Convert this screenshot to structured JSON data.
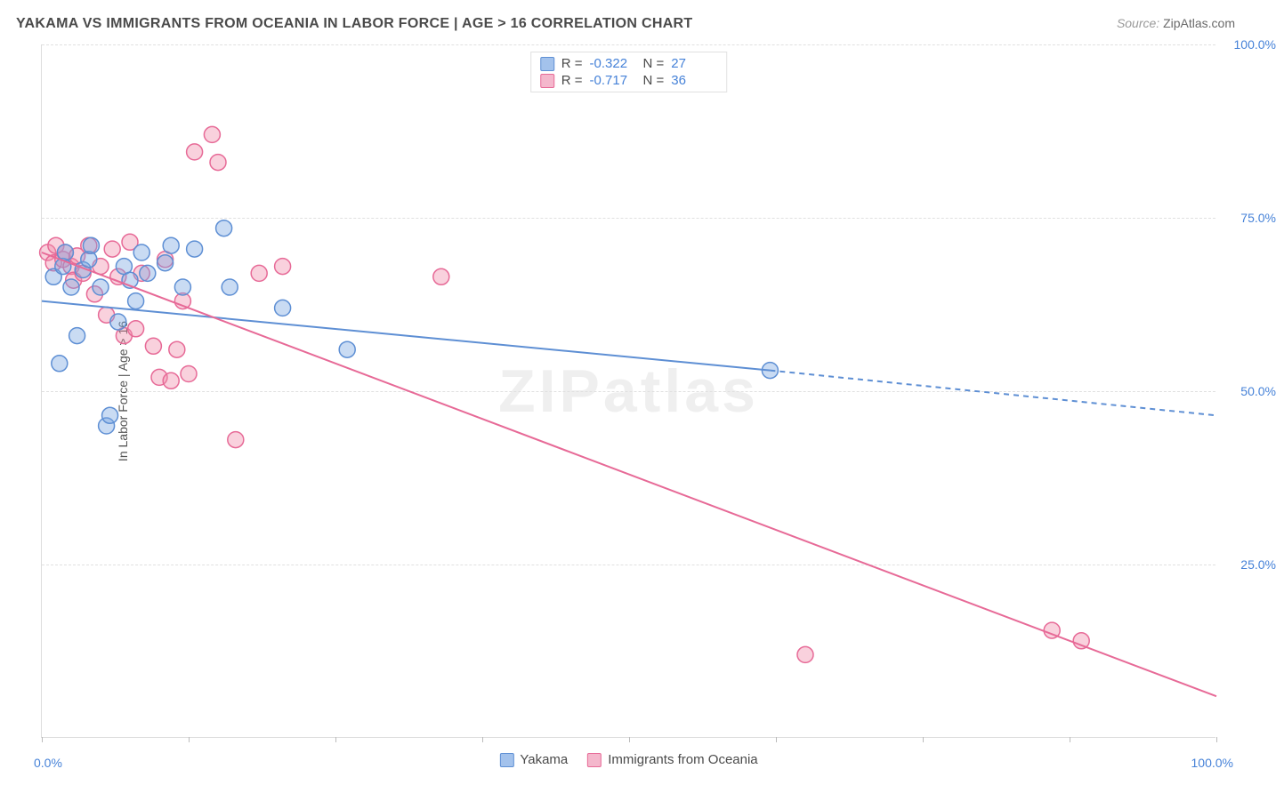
{
  "header": {
    "title": "YAKAMA VS IMMIGRANTS FROM OCEANIA IN LABOR FORCE | AGE > 16 CORRELATION CHART",
    "source_prefix": "Source: ",
    "source_name": "ZipAtlas.com"
  },
  "watermark": "ZIPatlas",
  "chart": {
    "type": "scatter",
    "ylabel": "In Labor Force | Age > 16",
    "xlim": [
      0,
      100
    ],
    "ylim": [
      0,
      100
    ],
    "xtick_marks": [
      0,
      12.5,
      25,
      37.5,
      50,
      62.5,
      75,
      87.5,
      100
    ],
    "xtick_labels": [
      {
        "pos": 0,
        "text": "0.0%"
      },
      {
        "pos": 100,
        "text": "100.0%"
      }
    ],
    "ytick_labels": [
      {
        "pos": 25,
        "text": "25.0%"
      },
      {
        "pos": 50,
        "text": "50.0%"
      },
      {
        "pos": 75,
        "text": "75.0%"
      },
      {
        "pos": 100,
        "text": "100.0%"
      }
    ],
    "grid_color": "#e0e0e0",
    "background_color": "#ffffff",
    "marker_radius": 9,
    "marker_stroke_width": 1.5,
    "line_width": 2,
    "series": {
      "yakama": {
        "label": "Yakama",
        "fill": "rgba(120,165,225,0.40)",
        "stroke": "#5e8fd4",
        "swatch_fill": "#a3c2ec",
        "swatch_stroke": "#5e8fd4",
        "R": "-0.322",
        "N": "27",
        "points": [
          [
            1.0,
            66.5
          ],
          [
            1.5,
            54.0
          ],
          [
            1.8,
            68.0
          ],
          [
            2.0,
            70.0
          ],
          [
            2.5,
            65.0
          ],
          [
            3.0,
            58.0
          ],
          [
            3.5,
            67.5
          ],
          [
            4.0,
            69.0
          ],
          [
            4.2,
            71.0
          ],
          [
            5.0,
            65.0
          ],
          [
            5.5,
            45.0
          ],
          [
            5.8,
            46.5
          ],
          [
            6.5,
            60.0
          ],
          [
            7.0,
            68.0
          ],
          [
            7.5,
            66.0
          ],
          [
            8.0,
            63.0
          ],
          [
            8.5,
            70.0
          ],
          [
            9.0,
            67.0
          ],
          [
            10.5,
            68.5
          ],
          [
            11.0,
            71.0
          ],
          [
            12.0,
            65.0
          ],
          [
            13.0,
            70.5
          ],
          [
            15.5,
            73.5
          ],
          [
            16.0,
            65.0
          ],
          [
            20.5,
            62.0
          ],
          [
            26.0,
            56.0
          ],
          [
            62.0,
            53.0
          ]
        ],
        "regression": {
          "x1": 0,
          "y1": 63.0,
          "x2": 62,
          "y2": 53.0,
          "extend_to_x": 100,
          "extend_y": 46.5,
          "dash_after_x": 62
        }
      },
      "oceania": {
        "label": "Immigrants from Oceania",
        "fill": "rgba(240,140,170,0.40)",
        "stroke": "#e76a97",
        "swatch_fill": "#f4b7cc",
        "swatch_stroke": "#e76a97",
        "R": "-0.717",
        "N": "36",
        "points": [
          [
            0.5,
            70.0
          ],
          [
            1.0,
            68.5
          ],
          [
            1.2,
            71.0
          ],
          [
            1.8,
            69.0
          ],
          [
            2.0,
            70.0
          ],
          [
            2.5,
            68.0
          ],
          [
            2.7,
            66.0
          ],
          [
            3.0,
            69.5
          ],
          [
            3.5,
            67.0
          ],
          [
            4.0,
            71.0
          ],
          [
            4.5,
            64.0
          ],
          [
            5.0,
            68.0
          ],
          [
            5.5,
            61.0
          ],
          [
            6.0,
            70.5
          ],
          [
            6.5,
            66.5
          ],
          [
            7.0,
            58.0
          ],
          [
            7.5,
            71.5
          ],
          [
            8.0,
            59.0
          ],
          [
            8.5,
            67.0
          ],
          [
            9.5,
            56.5
          ],
          [
            10.0,
            52.0
          ],
          [
            10.5,
            69.0
          ],
          [
            11.0,
            51.5
          ],
          [
            11.5,
            56.0
          ],
          [
            12.0,
            63.0
          ],
          [
            12.5,
            52.5
          ],
          [
            13.0,
            84.5
          ],
          [
            14.5,
            87.0
          ],
          [
            15.0,
            83.0
          ],
          [
            16.5,
            43.0
          ],
          [
            18.5,
            67.0
          ],
          [
            20.5,
            68.0
          ],
          [
            34.0,
            66.5
          ],
          [
            65.0,
            12.0
          ],
          [
            86.0,
            15.5
          ],
          [
            88.5,
            14.0
          ]
        ],
        "regression": {
          "x1": 0,
          "y1": 70.0,
          "x2": 100,
          "y2": 6.0
        }
      }
    },
    "legend_bottom": [
      "yakama",
      "oceania"
    ]
  }
}
